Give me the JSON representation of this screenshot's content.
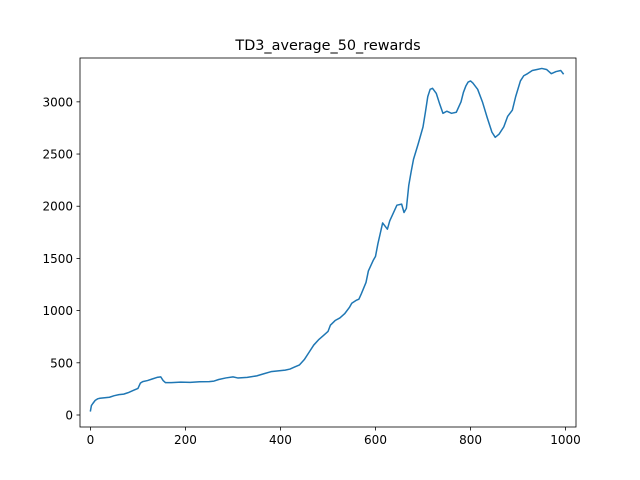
{
  "chart_data": {
    "type": "line",
    "title": "TD3_average_50_rewards",
    "xlabel": "",
    "ylabel": "",
    "xlim": [
      -22,
      1022
    ],
    "ylim": [
      -115,
      3420
    ],
    "xticks": [
      0,
      200,
      400,
      600,
      800,
      1000
    ],
    "yticks": [
      0,
      500,
      1000,
      1500,
      2000,
      2500,
      3000
    ],
    "grid": false,
    "line_color": "#1f77b4",
    "series": [
      {
        "values": [
          [
            0,
            40
          ],
          [
            2,
            90
          ],
          [
            5,
            110
          ],
          [
            10,
            140
          ],
          [
            15,
            155
          ],
          [
            20,
            160
          ],
          [
            30,
            165
          ],
          [
            40,
            170
          ],
          [
            50,
            185
          ],
          [
            60,
            195
          ],
          [
            70,
            200
          ],
          [
            80,
            215
          ],
          [
            90,
            235
          ],
          [
            100,
            255
          ],
          [
            105,
            305
          ],
          [
            110,
            320
          ],
          [
            120,
            330
          ],
          [
            130,
            345
          ],
          [
            140,
            360
          ],
          [
            148,
            365
          ],
          [
            153,
            330
          ],
          [
            158,
            310
          ],
          [
            170,
            310
          ],
          [
            190,
            315
          ],
          [
            210,
            312
          ],
          [
            230,
            318
          ],
          [
            250,
            320
          ],
          [
            260,
            325
          ],
          [
            270,
            340
          ],
          [
            285,
            355
          ],
          [
            300,
            365
          ],
          [
            310,
            355
          ],
          [
            330,
            360
          ],
          [
            350,
            375
          ],
          [
            365,
            395
          ],
          [
            380,
            415
          ],
          [
            400,
            425
          ],
          [
            410,
            430
          ],
          [
            420,
            440
          ],
          [
            430,
            460
          ],
          [
            440,
            480
          ],
          [
            450,
            530
          ],
          [
            460,
            600
          ],
          [
            470,
            670
          ],
          [
            480,
            720
          ],
          [
            490,
            760
          ],
          [
            500,
            800
          ],
          [
            505,
            860
          ],
          [
            515,
            905
          ],
          [
            525,
            930
          ],
          [
            535,
            970
          ],
          [
            545,
            1030
          ],
          [
            550,
            1070
          ],
          [
            560,
            1100
          ],
          [
            565,
            1110
          ],
          [
            570,
            1160
          ],
          [
            580,
            1270
          ],
          [
            585,
            1380
          ],
          [
            595,
            1480
          ],
          [
            600,
            1520
          ],
          [
            605,
            1640
          ],
          [
            610,
            1740
          ],
          [
            615,
            1840
          ],
          [
            620,
            1810
          ],
          [
            625,
            1780
          ],
          [
            630,
            1860
          ],
          [
            640,
            1960
          ],
          [
            645,
            2010
          ],
          [
            655,
            2020
          ],
          [
            660,
            1940
          ],
          [
            665,
            1980
          ],
          [
            670,
            2200
          ],
          [
            675,
            2330
          ],
          [
            680,
            2450
          ],
          [
            690,
            2600
          ],
          [
            700,
            2760
          ],
          [
            705,
            2900
          ],
          [
            710,
            3050
          ],
          [
            715,
            3120
          ],
          [
            720,
            3130
          ],
          [
            728,
            3080
          ],
          [
            735,
            2980
          ],
          [
            742,
            2890
          ],
          [
            750,
            2910
          ],
          [
            760,
            2890
          ],
          [
            770,
            2900
          ],
          [
            780,
            3000
          ],
          [
            785,
            3090
          ],
          [
            790,
            3150
          ],
          [
            795,
            3190
          ],
          [
            800,
            3200
          ],
          [
            805,
            3180
          ],
          [
            815,
            3120
          ],
          [
            825,
            3000
          ],
          [
            835,
            2850
          ],
          [
            845,
            2710
          ],
          [
            852,
            2660
          ],
          [
            860,
            2690
          ],
          [
            870,
            2760
          ],
          [
            878,
            2860
          ],
          [
            888,
            2920
          ],
          [
            895,
            3050
          ],
          [
            905,
            3200
          ],
          [
            912,
            3250
          ],
          [
            920,
            3270
          ],
          [
            930,
            3300
          ],
          [
            940,
            3310
          ],
          [
            950,
            3320
          ],
          [
            960,
            3310
          ],
          [
            970,
            3270
          ],
          [
            980,
            3290
          ],
          [
            990,
            3300
          ],
          [
            995,
            3270
          ]
        ]
      }
    ]
  }
}
